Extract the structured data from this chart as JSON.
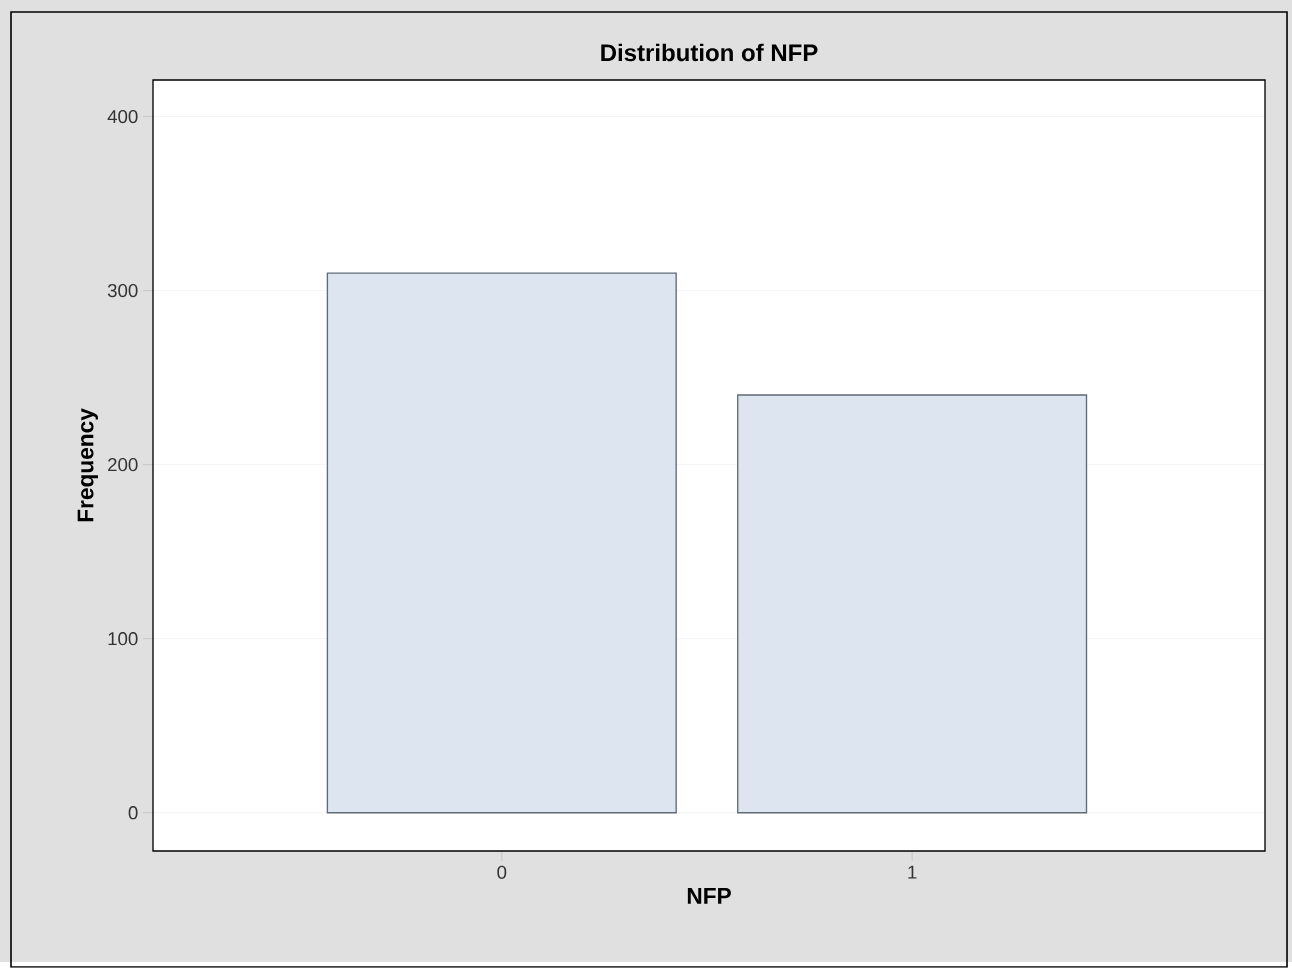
{
  "chart_data": {
    "type": "bar",
    "title": "Distribution of NFP",
    "xlabel": "NFP",
    "ylabel": "Frequency",
    "categories": [
      "0",
      "1"
    ],
    "values": [
      310,
      240
    ],
    "color": "#dce5f0",
    "ylim": [
      -22,
      421
    ],
    "yticks": [
      0,
      100,
      200,
      300,
      400
    ],
    "grid": "y"
  }
}
